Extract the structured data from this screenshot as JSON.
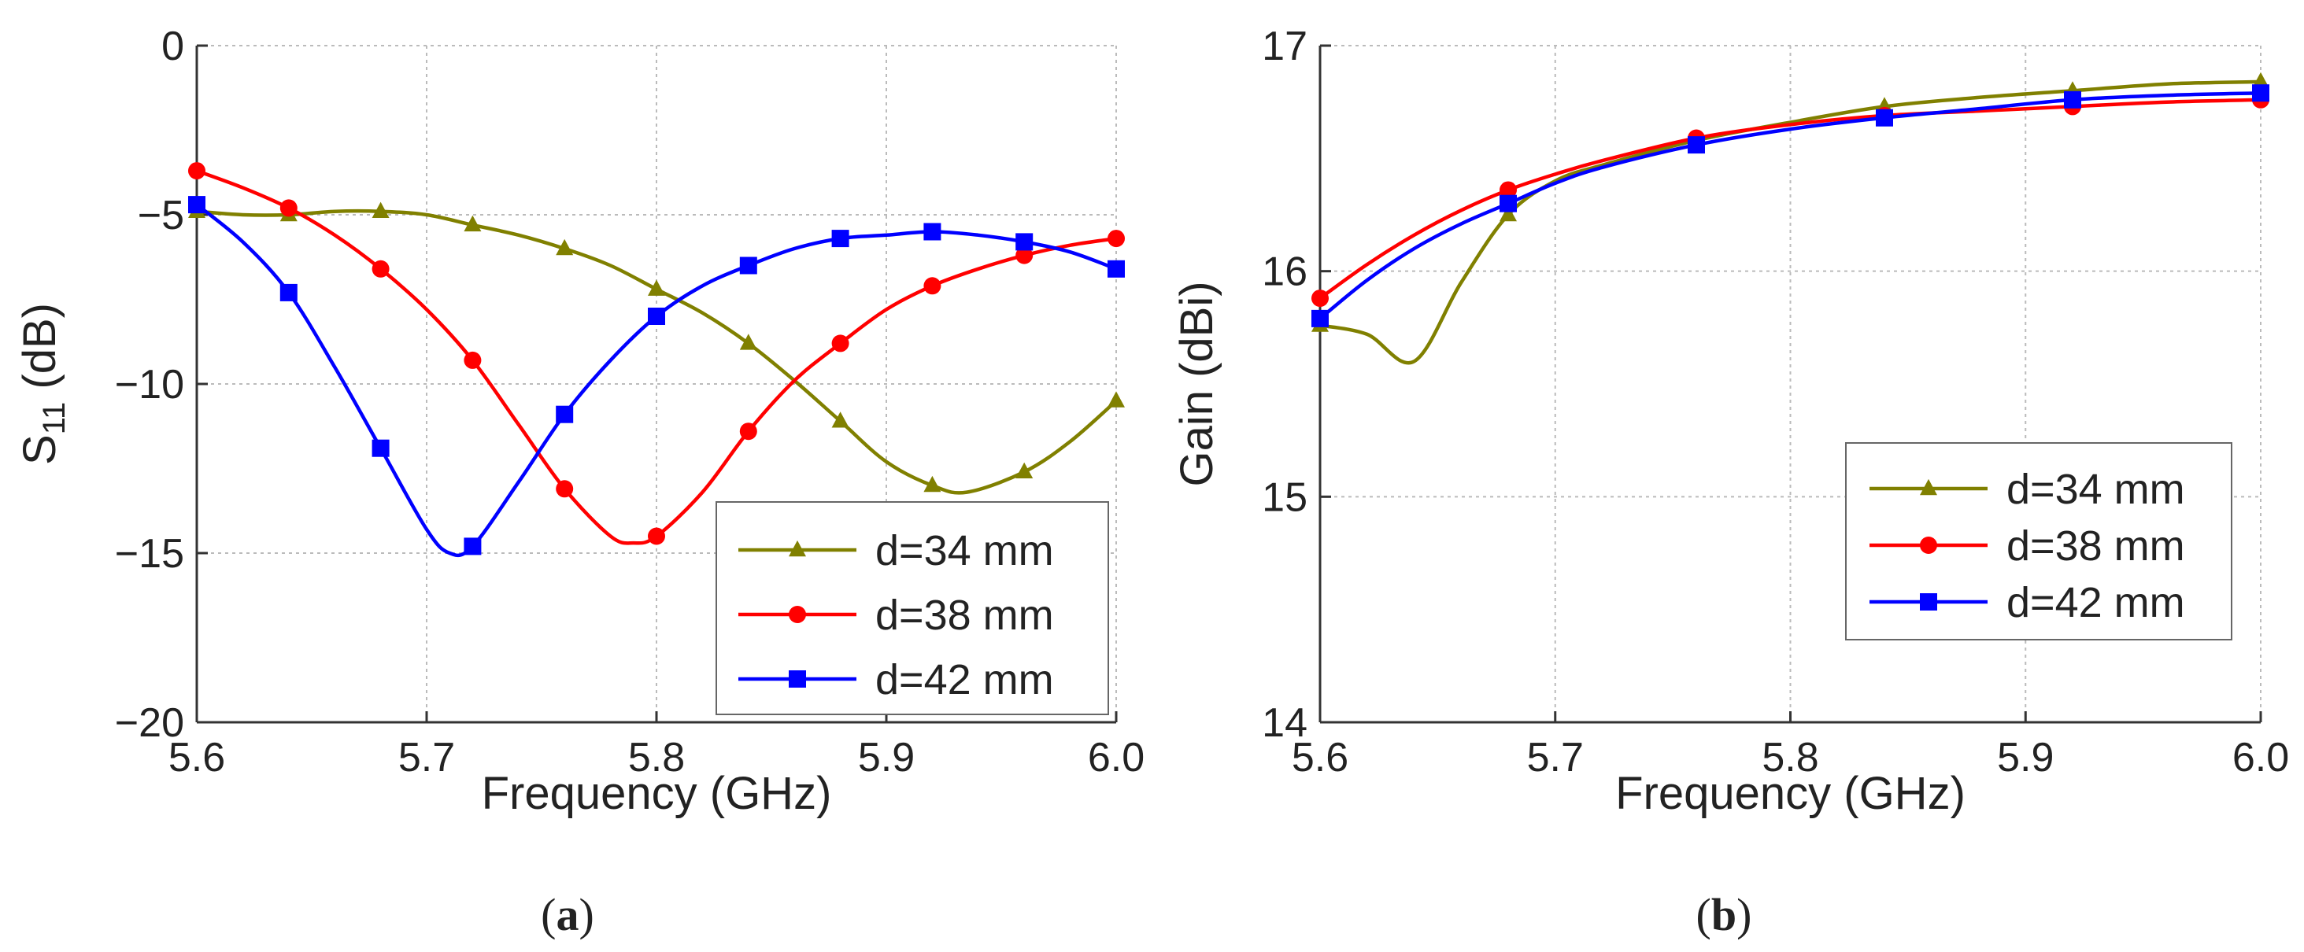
{
  "chart_data": [
    {
      "type": "line",
      "panel_label": "a",
      "xlabel": "Frequency (GHz)",
      "ylabel_main": "S",
      "ylabel_sub": "11",
      "ylabel_unit": " (dB)",
      "xlim": [
        5.6,
        6.0
      ],
      "ylim": [
        -20,
        0
      ],
      "xticks": [
        5.6,
        5.7,
        5.8,
        5.9,
        6.0
      ],
      "xtick_labels": [
        "5.6",
        "5.7",
        "5.8",
        "5.9",
        "6.0"
      ],
      "yticks": [
        0,
        -5,
        -10,
        -15,
        -20
      ],
      "ytick_labels": [
        "0",
        "−5",
        "−10",
        "−15",
        "−20"
      ],
      "grid": true,
      "legend_position": "bottom-right",
      "series": [
        {
          "name": "d=34 mm",
          "color": "#808000",
          "marker": "triangle",
          "x": [
            5.6,
            5.62,
            5.64,
            5.66,
            5.68,
            5.7,
            5.72,
            5.74,
            5.76,
            5.78,
            5.8,
            5.82,
            5.84,
            5.86,
            5.88,
            5.9,
            5.92,
            5.935,
            5.96,
            5.98,
            6.0
          ],
          "y": [
            -4.9,
            -5.0,
            -5.0,
            -4.9,
            -4.9,
            -5.0,
            -5.3,
            -5.6,
            -6.0,
            -6.5,
            -7.2,
            -7.9,
            -8.8,
            -9.9,
            -11.1,
            -12.3,
            -13.0,
            -13.2,
            -12.6,
            -11.7,
            -10.5
          ],
          "marker_x": [
            5.6,
            5.64,
            5.68,
            5.72,
            5.76,
            5.8,
            5.84,
            5.88,
            5.92,
            5.96,
            6.0
          ],
          "marker_y": [
            -4.9,
            -5.0,
            -4.9,
            -5.3,
            -6.0,
            -7.2,
            -8.8,
            -11.1,
            -13.0,
            -12.6,
            -10.5
          ]
        },
        {
          "name": "d=38 mm",
          "color": "#ff0000",
          "marker": "circle",
          "x": [
            5.6,
            5.62,
            5.64,
            5.66,
            5.68,
            5.7,
            5.72,
            5.74,
            5.76,
            5.78,
            5.79,
            5.8,
            5.82,
            5.84,
            5.86,
            5.88,
            5.9,
            5.92,
            5.94,
            5.96,
            5.98,
            6.0
          ],
          "y": [
            -3.7,
            -4.2,
            -4.8,
            -5.6,
            -6.6,
            -7.8,
            -9.3,
            -11.2,
            -13.1,
            -14.5,
            -14.7,
            -14.5,
            -13.2,
            -11.4,
            -9.9,
            -8.8,
            -7.8,
            -7.1,
            -6.6,
            -6.2,
            -5.9,
            -5.7
          ],
          "marker_x": [
            5.6,
            5.64,
            5.68,
            5.72,
            5.76,
            5.8,
            5.84,
            5.88,
            5.92,
            5.96,
            6.0
          ],
          "marker_y": [
            -3.7,
            -4.8,
            -6.6,
            -9.3,
            -13.1,
            -14.5,
            -11.4,
            -8.8,
            -7.1,
            -6.2,
            -5.7
          ]
        },
        {
          "name": "d=42 mm",
          "color": "#0000ff",
          "marker": "square",
          "x": [
            5.6,
            5.62,
            5.64,
            5.66,
            5.68,
            5.7,
            5.71,
            5.72,
            5.74,
            5.76,
            5.78,
            5.8,
            5.82,
            5.84,
            5.86,
            5.88,
            5.9,
            5.92,
            5.94,
            5.96,
            5.98,
            6.0
          ],
          "y": [
            -4.7,
            -5.8,
            -7.3,
            -9.5,
            -11.9,
            -14.3,
            -15.0,
            -14.8,
            -12.9,
            -10.9,
            -9.3,
            -8.0,
            -7.1,
            -6.5,
            -6.0,
            -5.7,
            -5.6,
            -5.5,
            -5.6,
            -5.8,
            -6.1,
            -6.6
          ],
          "marker_x": [
            5.6,
            5.64,
            5.68,
            5.72,
            5.76,
            5.8,
            5.84,
            5.88,
            5.92,
            5.96,
            6.0
          ],
          "marker_y": [
            -4.7,
            -7.3,
            -11.9,
            -14.8,
            -10.9,
            -8.0,
            -6.5,
            -5.7,
            -5.5,
            -5.8,
            -6.6
          ]
        }
      ]
    },
    {
      "type": "line",
      "panel_label": "b",
      "xlabel": "Frequency (GHz)",
      "ylabel": "Gain (dBi)",
      "xlim": [
        5.6,
        6.0
      ],
      "ylim": [
        14,
        17
      ],
      "xticks": [
        5.6,
        5.7,
        5.8,
        5.9,
        6.0
      ],
      "xtick_labels": [
        "5.6",
        "5.7",
        "5.8",
        "5.9",
        "6.0"
      ],
      "yticks": [
        14,
        15,
        16,
        17
      ],
      "ytick_labels": [
        "14",
        "15",
        "16",
        "17"
      ],
      "grid": true,
      "legend_position": "bottom-right",
      "series": [
        {
          "name": "d=34 mm",
          "color": "#808000",
          "marker": "triangle",
          "x": [
            5.6,
            5.62,
            5.64,
            5.66,
            5.68,
            5.7,
            5.72,
            5.76,
            5.8,
            5.84,
            5.88,
            5.92,
            5.96,
            6.0
          ],
          "y": [
            15.76,
            15.72,
            15.6,
            15.95,
            16.25,
            16.4,
            16.47,
            16.58,
            16.66,
            16.73,
            16.77,
            16.8,
            16.83,
            16.84
          ],
          "marker_x": [
            5.6,
            5.68,
            5.76,
            5.84,
            5.92,
            6.0
          ],
          "marker_y": [
            15.76,
            16.25,
            16.58,
            16.73,
            16.8,
            16.84
          ]
        },
        {
          "name": "d=38 mm",
          "color": "#ff0000",
          "marker": "circle",
          "x": [
            5.6,
            5.62,
            5.64,
            5.66,
            5.68,
            5.7,
            5.72,
            5.76,
            5.8,
            5.84,
            5.88,
            5.92,
            5.96,
            6.0
          ],
          "y": [
            15.88,
            16.03,
            16.16,
            16.27,
            16.36,
            16.43,
            16.49,
            16.59,
            16.65,
            16.69,
            16.71,
            16.73,
            16.75,
            16.76
          ],
          "marker_x": [
            5.6,
            5.68,
            5.76,
            5.84,
            5.92,
            6.0
          ],
          "marker_y": [
            15.88,
            16.36,
            16.59,
            16.69,
            16.73,
            16.76
          ]
        },
        {
          "name": "d=42 mm",
          "color": "#0000ff",
          "marker": "square",
          "x": [
            5.6,
            5.62,
            5.64,
            5.66,
            5.68,
            5.7,
            5.72,
            5.76,
            5.8,
            5.84,
            5.88,
            5.92,
            5.96,
            6.0
          ],
          "y": [
            15.79,
            15.96,
            16.1,
            16.21,
            16.3,
            16.39,
            16.46,
            16.56,
            16.63,
            16.68,
            16.72,
            16.76,
            16.78,
            16.79
          ],
          "marker_x": [
            5.6,
            5.68,
            5.76,
            5.84,
            5.92,
            6.0
          ],
          "marker_y": [
            15.79,
            16.3,
            16.56,
            16.68,
            16.76,
            16.79
          ]
        }
      ]
    }
  ],
  "captions": [
    {
      "open": "(",
      "letter": "a",
      "close": ")"
    },
    {
      "open": "(",
      "letter": "b",
      "close": ")"
    }
  ]
}
